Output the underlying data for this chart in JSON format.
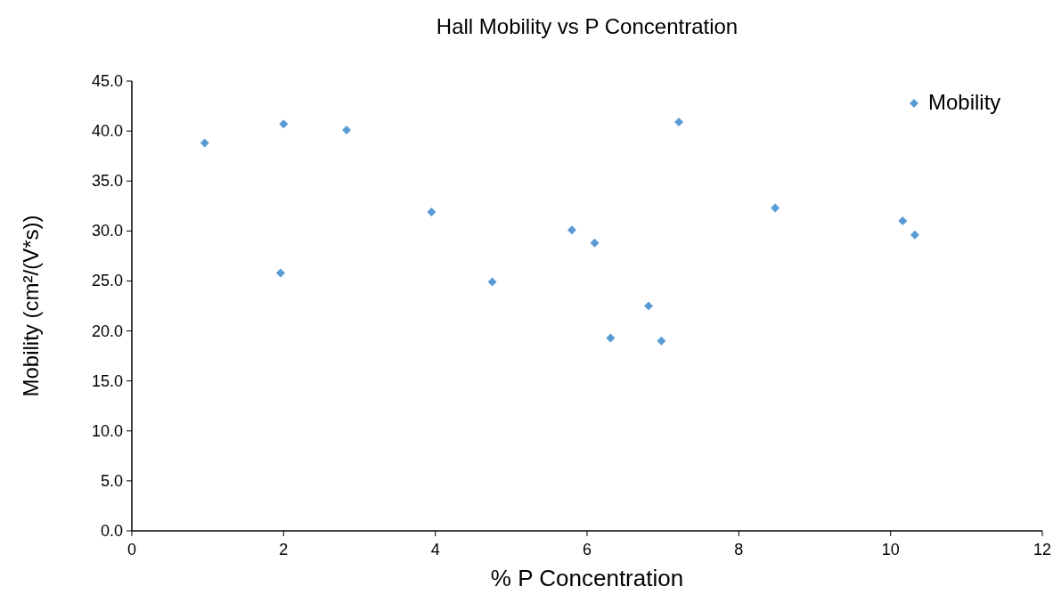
{
  "chart_data": {
    "type": "scatter",
    "title": "Hall Mobility vs P Concentration",
    "xlabel": "% P Concentration",
    "ylabel": "Mobility (cm²/(V*s))",
    "xlim": [
      0,
      12
    ],
    "xticks": [
      0,
      2,
      4,
      6,
      8,
      10,
      12
    ],
    "ylim": [
      0,
      45
    ],
    "yticks": [
      {
        "value": 0,
        "label": "0.0"
      },
      {
        "value": 5,
        "label": "5.0"
      },
      {
        "value": 10,
        "label": "10.0"
      },
      {
        "value": 15,
        "label": "15.0"
      },
      {
        "value": 20,
        "label": "20.0"
      },
      {
        "value": 25,
        "label": "25.0"
      },
      {
        "value": 30,
        "label": "30.0"
      },
      {
        "value": 35,
        "label": "35.0"
      },
      {
        "value": 40,
        "label": "40.0"
      },
      {
        "value": 45,
        "label": "45.0"
      }
    ],
    "grid": false,
    "legend": "top right",
    "marker": "diamond",
    "series": [
      {
        "name": "Mobility",
        "color": "#5b9bd5",
        "x": [
          0.96,
          2.0,
          2.83,
          1.96,
          3.95,
          4.75,
          5.8,
          6.1,
          6.31,
          6.81,
          6.98,
          7.21,
          8.48,
          10.16,
          10.32
        ],
        "values": [
          38.8,
          40.7,
          40.1,
          25.8,
          31.9,
          24.9,
          30.1,
          28.8,
          19.3,
          22.5,
          19.0,
          40.9,
          32.3,
          31.0,
          29.6
        ]
      }
    ]
  }
}
